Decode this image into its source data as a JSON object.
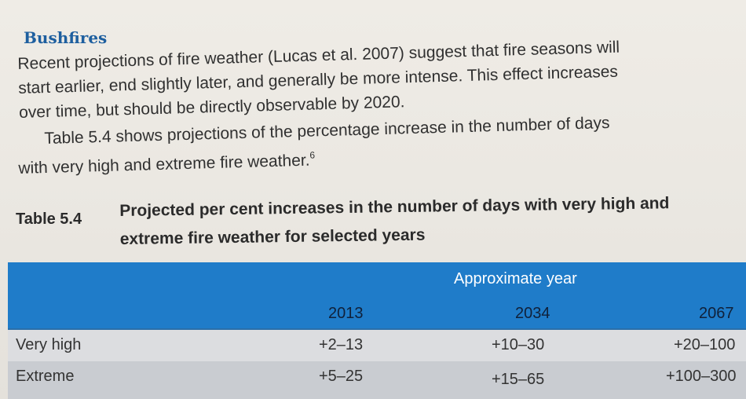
{
  "heading": "Bushfires",
  "paragraph1_lines": [
    "Recent projections of fire weather (Lucas et al. 2007) suggest that fire seasons will",
    "start earlier, end slightly later, and generally be more intense. This effect increases",
    "over time, but should be directly observable by 2020."
  ],
  "paragraph2_lines": [
    "Table 5.4 shows projections of the percentage increase in the number of days",
    "with very high and extreme fire weather."
  ],
  "footnote_marker": "6",
  "table": {
    "label": "Table 5.4",
    "caption_lines": [
      "Projected per cent increases in the number of days with very high and",
      "extreme fire weather for selected years"
    ],
    "group_header": "Approximate year",
    "columns": [
      "2013",
      "2034",
      "2067"
    ],
    "rows": [
      {
        "label": "Very high",
        "values": [
          "+2–13",
          "+10–30",
          "+20–100"
        ]
      },
      {
        "label": "Extreme",
        "values": [
          "+5–25",
          "+15–65",
          "+100–300"
        ]
      }
    ]
  }
}
